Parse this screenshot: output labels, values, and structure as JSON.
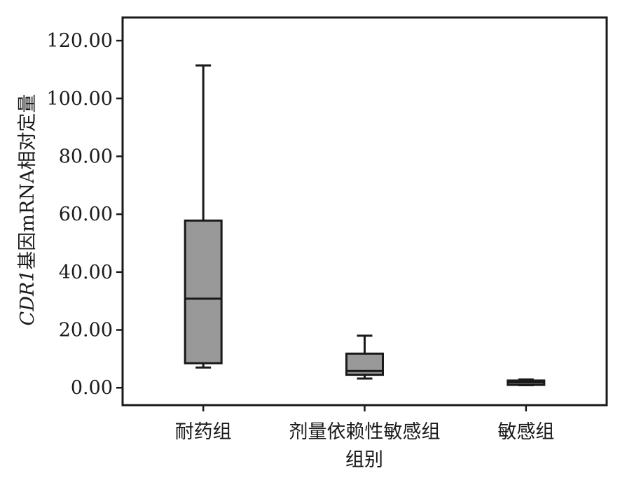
{
  "chart_data": {
    "type": "boxplot",
    "title": "",
    "xlabel": "组别",
    "ylabel": {
      "italic_part": "CDR1",
      "rest": "基因mRNA相对定量"
    },
    "ylim": [
      -6,
      128
    ],
    "yticks": [
      "0.00",
      "20.00",
      "40.00",
      "60.00",
      "80.00",
      "100.00",
      "120.00"
    ],
    "ytick_values": [
      0,
      20,
      40,
      60,
      80,
      100,
      120
    ],
    "categories": [
      "耐药组",
      "剂量依赖性敏感组",
      "敏感组"
    ],
    "boxes": [
      {
        "category": "耐药组",
        "min": 7.0,
        "q1": 8.5,
        "median": 30.8,
        "q3": 57.8,
        "max": 111.4
      },
      {
        "category": "剂量依赖性敏感组",
        "min": 3.2,
        "q1": 4.5,
        "median": 5.8,
        "q3": 11.8,
        "max": 18.0
      },
      {
        "category": "敏感组",
        "min": 0.9,
        "q1": 1.0,
        "median": 1.9,
        "q3": 2.5,
        "max": 2.9
      }
    ],
    "box_color": "#999999",
    "line_color": "#1a1a1a",
    "grid": false,
    "legend": "none"
  }
}
